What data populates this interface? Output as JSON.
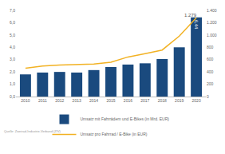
{
  "chart_data": {
    "type": "bar",
    "categories": [
      "2010",
      "2011",
      "2012",
      "2013",
      "2014",
      "2015",
      "2016",
      "2017",
      "2018",
      "2019",
      "2020"
    ],
    "series": [
      {
        "name": "Umsatz mit Fahrrädern und E-Bikes (in Mrd. EUR)",
        "type": "bar",
        "color": "#1a4a7e",
        "values": [
          1.8,
          1.95,
          2.0,
          1.95,
          2.15,
          2.4,
          2.6,
          2.7,
          3.05,
          4.0,
          6.44
        ],
        "value_labels": [
          null,
          null,
          null,
          null,
          null,
          null,
          null,
          null,
          null,
          null,
          "6,44"
        ]
      },
      {
        "name": "Umsatz pro Fahrrad / E-Bike (in EUR)",
        "type": "line",
        "color": "#f2b224",
        "axis": "y2",
        "values": [
          460,
          495,
          513,
          520,
          528,
          557,
          643,
          698,
          756,
          982,
          1279
        ],
        "value_labels": [
          null,
          null,
          null,
          null,
          null,
          null,
          null,
          null,
          null,
          null,
          "1.279"
        ]
      }
    ],
    "ylim": [
      0,
      7
    ],
    "yticks": [
      {
        "value": 0,
        "label": "0,0"
      },
      {
        "value": 1,
        "label": "1,0"
      },
      {
        "value": 2,
        "label": "2,0"
      },
      {
        "value": 3,
        "label": "3,0"
      },
      {
        "value": 4,
        "label": "4,0"
      },
      {
        "value": 5,
        "label": "5,0"
      },
      {
        "value": 6,
        "label": "6,0"
      },
      {
        "value": 7,
        "label": "7,0"
      }
    ],
    "y2lim": [
      0,
      1400
    ],
    "y2ticks": [
      0,
      200,
      400,
      600,
      800,
      {
        "value": 1000,
        "label": "1.000"
      },
      {
        "value": 1200,
        "label": "1.200"
      },
      {
        "value": 1400,
        "label": "1.400"
      }
    ],
    "grid": false,
    "legend": "bottom",
    "source": "Quelle: Zweirad-Industrie-Verband (ZIV)"
  }
}
